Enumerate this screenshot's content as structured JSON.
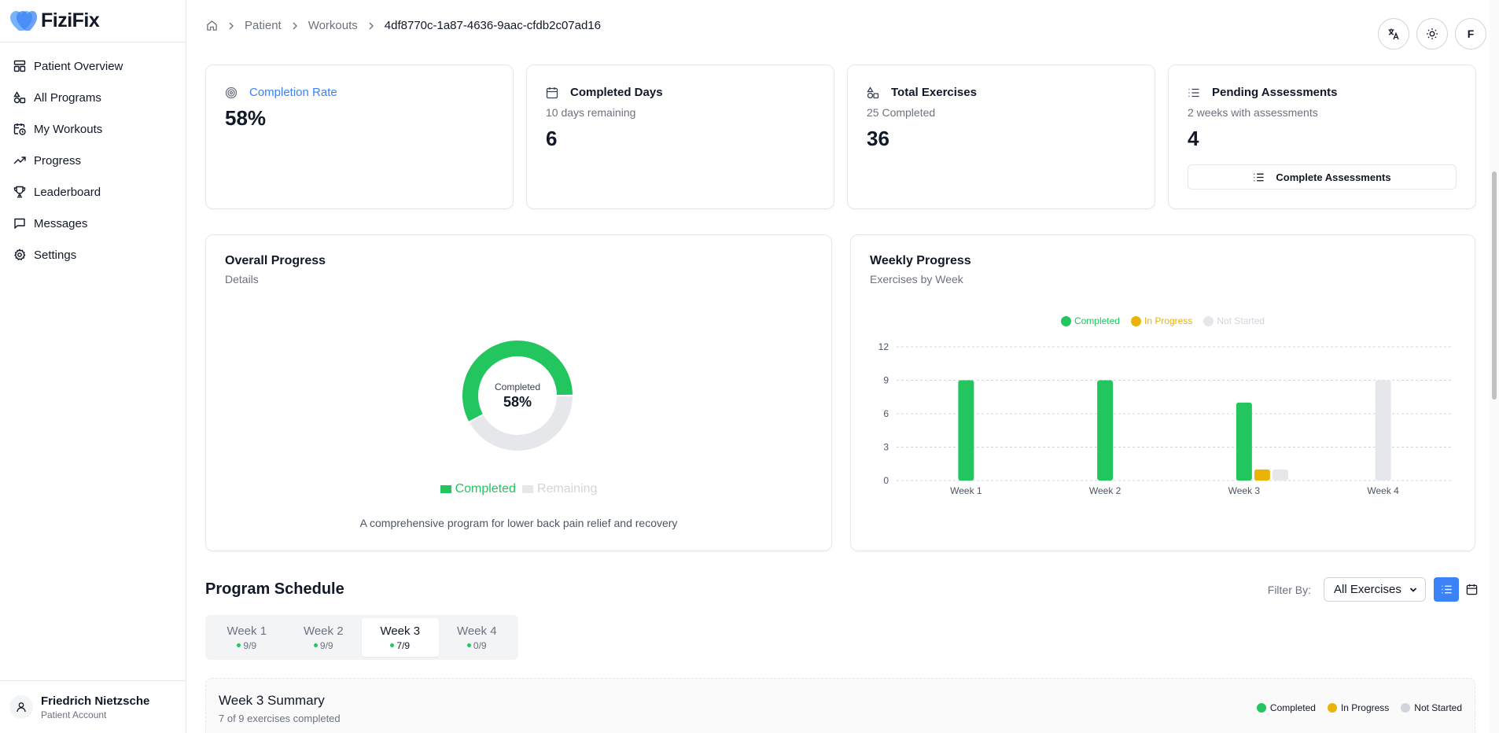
{
  "brand": {
    "name": "FiziFix"
  },
  "sidebar": {
    "items": [
      {
        "label": "Patient Overview",
        "icon": "layout-icon"
      },
      {
        "label": "All Programs",
        "icon": "shapes-icon"
      },
      {
        "label": "My Workouts",
        "icon": "calendar-clock-icon"
      },
      {
        "label": "Progress",
        "icon": "trending-up-icon"
      },
      {
        "label": "Leaderboard",
        "icon": "trophy-icon"
      },
      {
        "label": "Messages",
        "icon": "message-icon"
      },
      {
        "label": "Settings",
        "icon": "gear-icon"
      }
    ],
    "user": {
      "name": "Friedrich Nietzsche",
      "role": "Patient Account"
    }
  },
  "header": {
    "breadcrumb": [
      "Patient",
      "Workouts",
      "4df8770c-1a87-4636-9aac-cfdb2c07ad16"
    ],
    "avatar_initial": "F"
  },
  "stats": {
    "completion": {
      "title": "Completion Rate",
      "value": "58%"
    },
    "days": {
      "title": "Completed Days",
      "subtitle": "10 days remaining",
      "value": "6"
    },
    "exercises": {
      "title": "Total Exercises",
      "subtitle": "25 Completed",
      "value": "36"
    },
    "assessments": {
      "title": "Pending Assessments",
      "subtitle": "2 weeks with assessments",
      "value": "4",
      "button": "Complete Assessments"
    }
  },
  "overall": {
    "title": "Overall Progress",
    "subtitle": "Details",
    "center_label": "Completed",
    "center_value": "58%",
    "legend": [
      "Completed",
      "Remaining"
    ],
    "description": "A comprehensive program for lower back pain relief and recovery"
  },
  "weekly": {
    "title": "Weekly Progress",
    "subtitle": "Exercises by Week",
    "legend": [
      "Completed",
      "In Progress",
      "Not Started"
    ]
  },
  "colors": {
    "completed": "#22c55e",
    "in_progress": "#eab308",
    "not_started": "#e5e7eb",
    "accent": "#3b82f6"
  },
  "chart_data": [
    {
      "type": "pie",
      "labels": [
        "Completed",
        "Remaining"
      ],
      "values": [
        58,
        42
      ]
    },
    {
      "type": "bar",
      "categories": [
        "Week 1",
        "Week 2",
        "Week 3",
        "Week 4"
      ],
      "series": [
        {
          "name": "Completed",
          "values": [
            9,
            9,
            7,
            0
          ]
        },
        {
          "name": "In Progress",
          "values": [
            0,
            0,
            1,
            0
          ]
        },
        {
          "name": "Not Started",
          "values": [
            0,
            0,
            1,
            9
          ]
        }
      ],
      "yticks": [
        "0",
        "3",
        "6",
        "9",
        "12"
      ],
      "ylim": [
        0,
        12
      ],
      "grid": true,
      "legend_position": "top"
    }
  ],
  "schedule": {
    "title": "Program Schedule",
    "filter_label": "Filter By:",
    "filter_value": "All Exercises",
    "weeks": [
      {
        "label": "Week 1",
        "count": "9/9"
      },
      {
        "label": "Week 2",
        "count": "9/9"
      },
      {
        "label": "Week 3",
        "count": "7/9"
      },
      {
        "label": "Week 4",
        "count": "0/9"
      }
    ],
    "summary_title": "Week 3 Summary",
    "summary_sub": "7 of 9 exercises completed",
    "summary_legend": [
      "Completed",
      "In Progress",
      "Not Started"
    ]
  }
}
